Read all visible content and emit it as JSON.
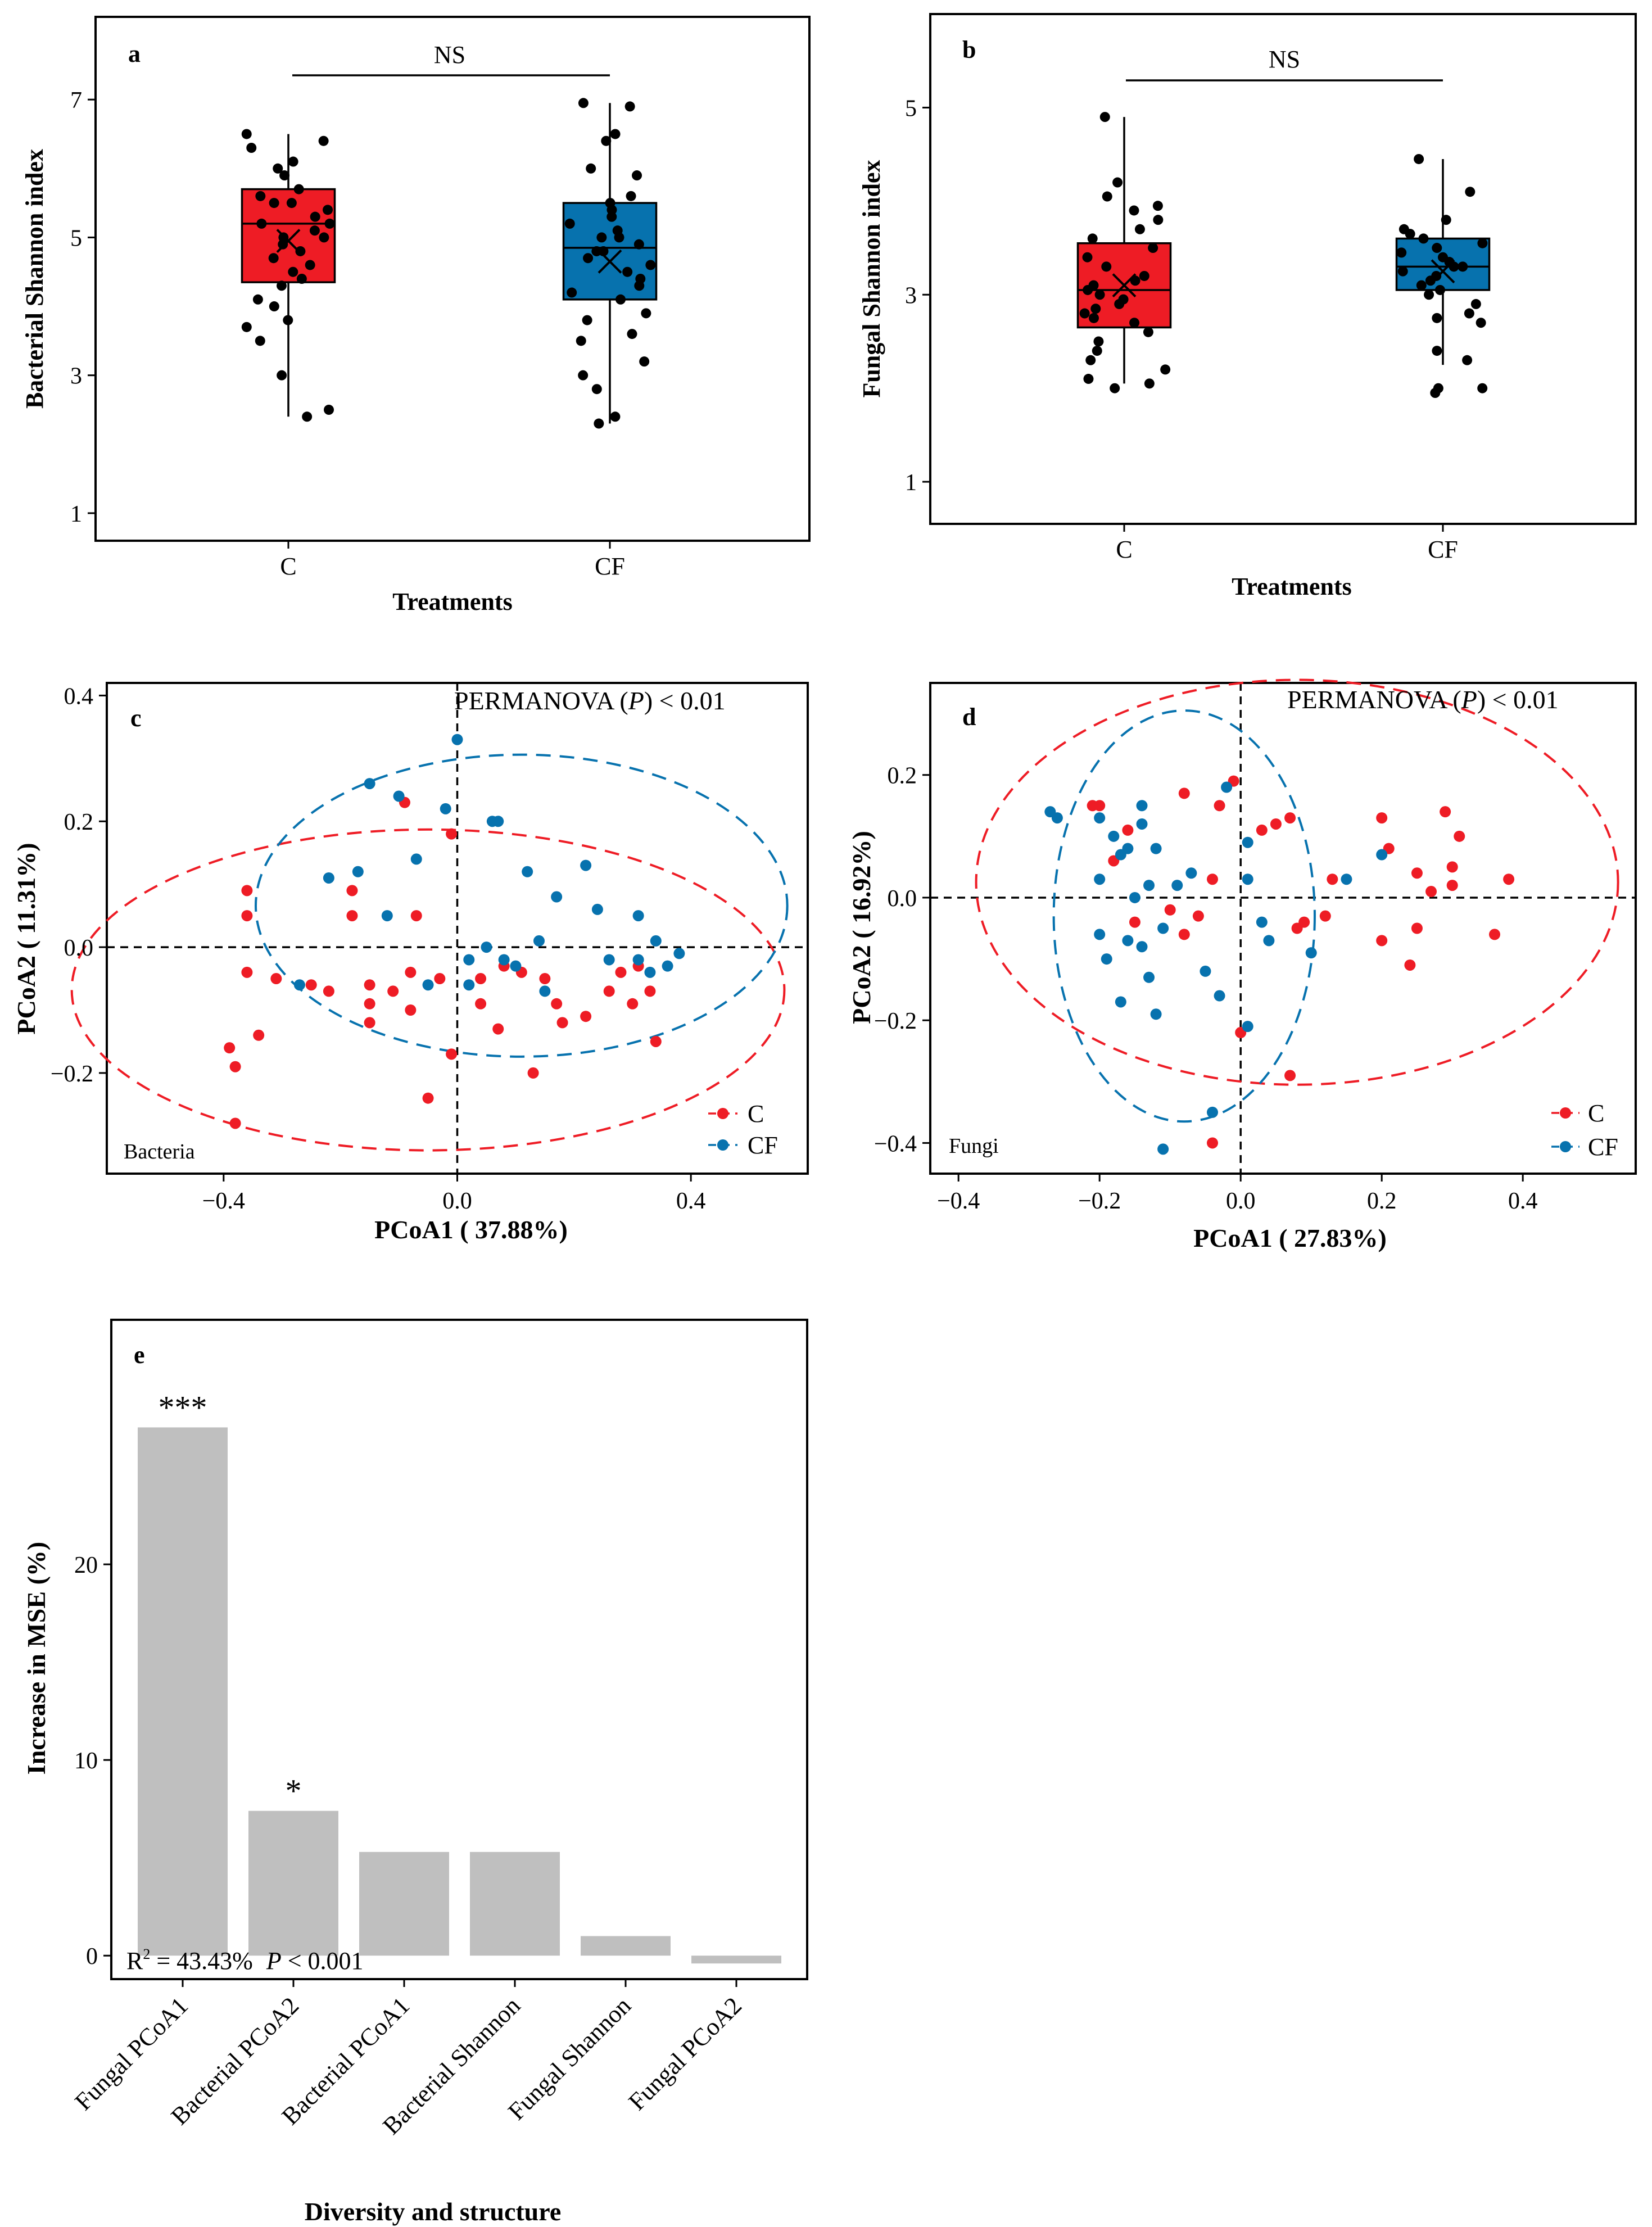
{
  "colors": {
    "C": "#ee1c25",
    "CF": "#0772ae",
    "bar": "#bfbfbf"
  },
  "chart_data": [
    {
      "panel": "a",
      "type": "box",
      "title": "",
      "xlabel": "Treatments",
      "ylabel": "Bacterial Shannon index",
      "categories": [
        "C",
        "CF"
      ],
      "ylim": [
        0.6,
        8.2
      ],
      "yticks": [
        1,
        3,
        5,
        7
      ],
      "significance": "NS",
      "groups": [
        {
          "name": "C",
          "q1": 4.35,
          "median": 5.2,
          "q3": 5.7,
          "mean": 4.95,
          "whisker_low": 2.4,
          "whisker_high": 6.5,
          "points": [
            6.5,
            6.4,
            6.3,
            6.1,
            6.0,
            5.9,
            5.7,
            5.6,
            5.5,
            5.5,
            5.4,
            5.3,
            5.2,
            5.2,
            5.1,
            5.0,
            5.0,
            4.9,
            4.8,
            4.7,
            4.6,
            4.5,
            4.4,
            4.3,
            4.1,
            4.0,
            3.8,
            3.7,
            3.5,
            3.0,
            2.5,
            2.4
          ]
        },
        {
          "name": "CF",
          "q1": 4.1,
          "median": 4.85,
          "q3": 5.5,
          "mean": 4.65,
          "whisker_low": 2.3,
          "whisker_high": 6.95,
          "points": [
            6.95,
            6.9,
            6.5,
            6.4,
            6.0,
            5.9,
            5.6,
            5.5,
            5.4,
            5.3,
            5.2,
            5.1,
            5.0,
            5.0,
            4.9,
            4.8,
            4.8,
            4.7,
            4.6,
            4.5,
            4.4,
            4.3,
            4.2,
            4.1,
            3.9,
            3.8,
            3.6,
            3.5,
            3.2,
            3.0,
            2.8,
            2.4,
            2.3
          ]
        }
      ]
    },
    {
      "panel": "b",
      "type": "box",
      "title": "",
      "xlabel": "Treatments",
      "ylabel": "Fungal Shannon index",
      "categories": [
        "C",
        "CF"
      ],
      "ylim": [
        0.55,
        6.0
      ],
      "yticks": [
        1,
        3,
        5
      ],
      "significance": "NS",
      "groups": [
        {
          "name": "C",
          "q1": 2.65,
          "median": 3.05,
          "q3": 3.55,
          "mean": 3.1,
          "whisker_low": 2.05,
          "whisker_high": 4.9,
          "points": [
            4.9,
            4.2,
            4.05,
            3.95,
            3.9,
            3.8,
            3.7,
            3.6,
            3.5,
            3.4,
            3.3,
            3.2,
            3.15,
            3.1,
            3.05,
            3.0,
            2.95,
            2.9,
            2.85,
            2.8,
            2.75,
            2.7,
            2.6,
            2.5,
            2.4,
            2.3,
            2.2,
            2.1,
            2.05,
            2.0
          ]
        },
        {
          "name": "CF",
          "q1": 3.05,
          "median": 3.3,
          "q3": 3.6,
          "mean": 3.25,
          "whisker_low": 2.25,
          "whisker_high": 4.45,
          "points": [
            4.45,
            4.1,
            3.8,
            3.7,
            3.65,
            3.6,
            3.55,
            3.5,
            3.45,
            3.4,
            3.35,
            3.3,
            3.3,
            3.25,
            3.2,
            3.15,
            3.1,
            3.05,
            3.0,
            2.9,
            2.8,
            2.75,
            2.7,
            2.4,
            2.3,
            2.0,
            2.0,
            1.95
          ]
        }
      ]
    },
    {
      "panel": "c",
      "type": "scatter",
      "title": "",
      "xlabel": "PCoA1 ( 37.88%)",
      "ylabel": "PCoA2 ( 11.31%)",
      "xlim": [
        -0.6,
        0.6
      ],
      "ylim": [
        -0.36,
        0.42
      ],
      "xticks": [
        -0.4,
        0.0,
        0.4
      ],
      "yticks": [
        -0.2,
        0.0,
        0.2,
        0.4
      ],
      "xtick_labels": [
        "−0.4",
        "0.0",
        "0.4"
      ],
      "ytick_labels": [
        "−0.2",
        "0.0",
        "0.2",
        "0.4"
      ],
      "annotation": "PERMANOVA",
      "annotation_p": "P",
      "annotation_tail": "< 0.01",
      "tag": "Bacteria",
      "legend": [
        "C",
        "CF"
      ],
      "ellipses": [
        {
          "name": "C",
          "cx": -0.05,
          "cy": -0.068,
          "rx": 0.61,
          "ry": 0.255
        },
        {
          "name": "CF",
          "cx": 0.11,
          "cy": 0.066,
          "rx": 0.455,
          "ry": 0.24
        }
      ],
      "series": [
        {
          "name": "C",
          "points": [
            [
              -0.09,
              0.23
            ],
            [
              -0.01,
              0.18
            ],
            [
              -0.36,
              0.09
            ],
            [
              -0.18,
              0.09
            ],
            [
              -0.36,
              0.05
            ],
            [
              -0.18,
              0.05
            ],
            [
              -0.07,
              0.05
            ],
            [
              -0.36,
              -0.04
            ],
            [
              -0.31,
              -0.05
            ],
            [
              -0.25,
              -0.06
            ],
            [
              -0.15,
              -0.06
            ],
            [
              -0.08,
              -0.04
            ],
            [
              -0.11,
              -0.07
            ],
            [
              -0.03,
              -0.05
            ],
            [
              0.04,
              -0.05
            ],
            [
              0.08,
              -0.03
            ],
            [
              0.11,
              -0.04
            ],
            [
              0.15,
              -0.05
            ],
            [
              -0.22,
              -0.07
            ],
            [
              -0.15,
              -0.09
            ],
            [
              0.04,
              -0.09
            ],
            [
              0.17,
              -0.09
            ],
            [
              0.22,
              -0.11
            ],
            [
              0.26,
              -0.07
            ],
            [
              0.28,
              -0.04
            ],
            [
              0.31,
              -0.03
            ],
            [
              0.33,
              -0.07
            ],
            [
              0.3,
              -0.09
            ],
            [
              0.34,
              -0.15
            ],
            [
              0.13,
              -0.2
            ],
            [
              0.07,
              -0.13
            ],
            [
              -0.15,
              -0.12
            ],
            [
              -0.08,
              -0.1
            ],
            [
              -0.34,
              -0.14
            ],
            [
              -0.39,
              -0.16
            ],
            [
              -0.38,
              -0.19
            ],
            [
              -0.38,
              -0.28
            ],
            [
              -0.01,
              -0.17
            ],
            [
              -0.05,
              -0.24
            ],
            [
              0.18,
              -0.12
            ]
          ]
        },
        {
          "name": "CF",
          "points": [
            [
              -0.15,
              0.26
            ],
            [
              -0.1,
              0.24
            ],
            [
              0.0,
              0.33
            ],
            [
              -0.02,
              0.22
            ],
            [
              0.07,
              0.2
            ],
            [
              0.06,
              0.2
            ],
            [
              -0.22,
              0.11
            ],
            [
              -0.12,
              0.05
            ],
            [
              -0.17,
              0.12
            ],
            [
              -0.07,
              0.14
            ],
            [
              0.12,
              0.12
            ],
            [
              0.22,
              0.13
            ],
            [
              0.17,
              0.08
            ],
            [
              0.24,
              0.06
            ],
            [
              0.31,
              0.05
            ],
            [
              0.34,
              0.01
            ],
            [
              0.38,
              -0.01
            ],
            [
              0.31,
              -0.02
            ],
            [
              0.26,
              -0.02
            ],
            [
              0.14,
              0.01
            ],
            [
              0.08,
              -0.02
            ],
            [
              0.02,
              -0.02
            ],
            [
              0.05,
              0.0
            ],
            [
              0.1,
              -0.03
            ],
            [
              0.02,
              -0.06
            ],
            [
              -0.05,
              -0.06
            ],
            [
              -0.27,
              -0.06
            ],
            [
              0.15,
              -0.07
            ],
            [
              0.33,
              -0.04
            ],
            [
              0.36,
              -0.03
            ]
          ]
        }
      ]
    },
    {
      "panel": "d",
      "type": "scatter",
      "title": "",
      "xlabel": "PCoA1 ( 27.83%)",
      "ylabel": "PCoA2 ( 16.92%)",
      "xlim": [
        -0.44,
        0.56
      ],
      "ylim": [
        -0.45,
        0.35
      ],
      "xticks": [
        -0.4,
        -0.2,
        0.0,
        0.2,
        0.4
      ],
      "yticks": [
        -0.4,
        -0.2,
        0.0,
        0.2
      ],
      "xtick_labels": [
        "−0.4",
        "−0.2",
        "0.0",
        "0.2",
        "0.4"
      ],
      "ytick_labels": [
        "−0.4",
        "−0.2",
        "0.0",
        "0.2"
      ],
      "annotation": "PERMANOVA",
      "annotation_p": "P",
      "annotation_tail": "< 0.01",
      "tag": "Fungi",
      "legend": [
        "C",
        "CF"
      ],
      "ellipses": [
        {
          "name": "C",
          "cx": 0.08,
          "cy": 0.025,
          "rx": 0.455,
          "ry": 0.33
        },
        {
          "name": "CF",
          "cx": -0.08,
          "cy": -0.03,
          "rx": 0.185,
          "ry": 0.335
        }
      ],
      "series": [
        {
          "name": "C",
          "points": [
            [
              -0.21,
              0.15
            ],
            [
              -0.2,
              0.15
            ],
            [
              -0.16,
              0.11
            ],
            [
              -0.18,
              0.06
            ],
            [
              -0.08,
              0.17
            ],
            [
              -0.01,
              0.19
            ],
            [
              -0.03,
              0.15
            ],
            [
              0.05,
              0.12
            ],
            [
              0.07,
              0.13
            ],
            [
              0.03,
              0.11
            ],
            [
              0.2,
              0.13
            ],
            [
              0.29,
              0.14
            ],
            [
              0.31,
              0.1
            ],
            [
              0.21,
              0.08
            ],
            [
              0.13,
              0.03
            ],
            [
              0.25,
              0.04
            ],
            [
              0.3,
              0.05
            ],
            [
              0.27,
              0.01
            ],
            [
              0.3,
              0.02
            ],
            [
              0.38,
              0.03
            ],
            [
              0.36,
              -0.06
            ],
            [
              0.2,
              -0.07
            ],
            [
              0.25,
              -0.05
            ],
            [
              0.24,
              -0.11
            ],
            [
              0.09,
              -0.04
            ],
            [
              0.12,
              -0.03
            ],
            [
              0.08,
              -0.05
            ],
            [
              -0.04,
              0.03
            ],
            [
              -0.06,
              -0.03
            ],
            [
              -0.1,
              -0.02
            ],
            [
              -0.08,
              -0.06
            ],
            [
              -0.15,
              -0.04
            ],
            [
              0.0,
              -0.22
            ],
            [
              0.07,
              -0.29
            ],
            [
              -0.04,
              -0.4
            ]
          ]
        },
        {
          "name": "CF",
          "points": [
            [
              -0.26,
              0.13
            ],
            [
              -0.27,
              0.14
            ],
            [
              -0.2,
              0.13
            ],
            [
              -0.18,
              0.1
            ],
            [
              -0.14,
              0.15
            ],
            [
              -0.14,
              0.12
            ],
            [
              -0.16,
              0.08
            ],
            [
              -0.12,
              0.08
            ],
            [
              -0.17,
              0.07
            ],
            [
              -0.2,
              0.03
            ],
            [
              -0.15,
              0.0
            ],
            [
              -0.13,
              0.02
            ],
            [
              -0.09,
              0.02
            ],
            [
              -0.07,
              0.04
            ],
            [
              -0.02,
              0.18
            ],
            [
              0.01,
              0.09
            ],
            [
              0.01,
              0.03
            ],
            [
              0.15,
              0.03
            ],
            [
              0.2,
              0.07
            ],
            [
              0.04,
              -0.07
            ],
            [
              -0.2,
              -0.06
            ],
            [
              -0.16,
              -0.07
            ],
            [
              -0.14,
              -0.08
            ],
            [
              -0.11,
              -0.05
            ],
            [
              -0.19,
              -0.1
            ],
            [
              -0.13,
              -0.13
            ],
            [
              -0.17,
              -0.17
            ],
            [
              -0.12,
              -0.19
            ],
            [
              -0.05,
              -0.12
            ],
            [
              -0.03,
              -0.16
            ],
            [
              0.01,
              -0.21
            ],
            [
              0.03,
              -0.04
            ],
            [
              0.1,
              -0.09
            ],
            [
              -0.04,
              -0.35
            ],
            [
              -0.11,
              -0.41
            ]
          ]
        }
      ]
    },
    {
      "panel": "e",
      "type": "bar",
      "title": "",
      "xlabel": "Diversity and structure",
      "ylabel": "Increase in MSE (%)",
      "ylim": [
        -1.2,
        32.5
      ],
      "yticks": [
        0,
        10,
        20
      ],
      "categories": [
        "Fungal PCoA1",
        "Bacterial PCoA2",
        "Bacterial PCoA1",
        "Bacterial Shannon",
        "Fungal Shannon",
        "Fungal PCoA2"
      ],
      "values": [
        27.0,
        7.4,
        5.3,
        5.3,
        1.0,
        -0.4
      ],
      "significance": [
        "***",
        "*",
        "",
        "",
        "",
        ""
      ],
      "r2_prefix": "R",
      "r2_sup": "2",
      "r2_value": " = 43.43%",
      "p_label": "P",
      "p_value": " < 0.001"
    }
  ]
}
